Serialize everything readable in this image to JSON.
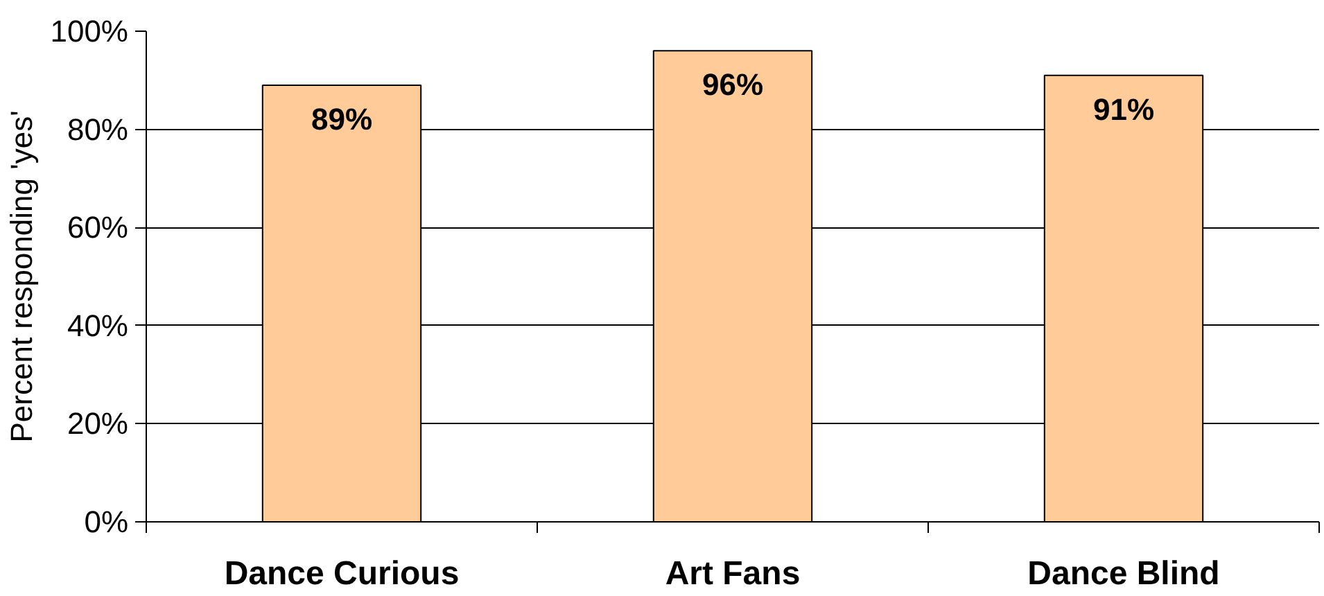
{
  "chart_data": {
    "type": "bar",
    "ylabel": "Percent responding 'yes'",
    "categories": [
      "Dance Curious",
      "Art Fans",
      "Dance Blind"
    ],
    "values": [
      89,
      96,
      91
    ],
    "value_labels": [
      "89%",
      "96%",
      "91%"
    ],
    "color": "#ffcc99",
    "ylim": [
      0,
      100
    ],
    "yticks": [
      {
        "value": 0,
        "label": "0%"
      },
      {
        "value": 20,
        "label": "20%"
      },
      {
        "value": 40,
        "label": "40%"
      },
      {
        "value": 60,
        "label": "60%"
      },
      {
        "value": 80,
        "label": "80%"
      },
      {
        "value": 100,
        "label": "100%"
      }
    ],
    "grid": "y"
  }
}
